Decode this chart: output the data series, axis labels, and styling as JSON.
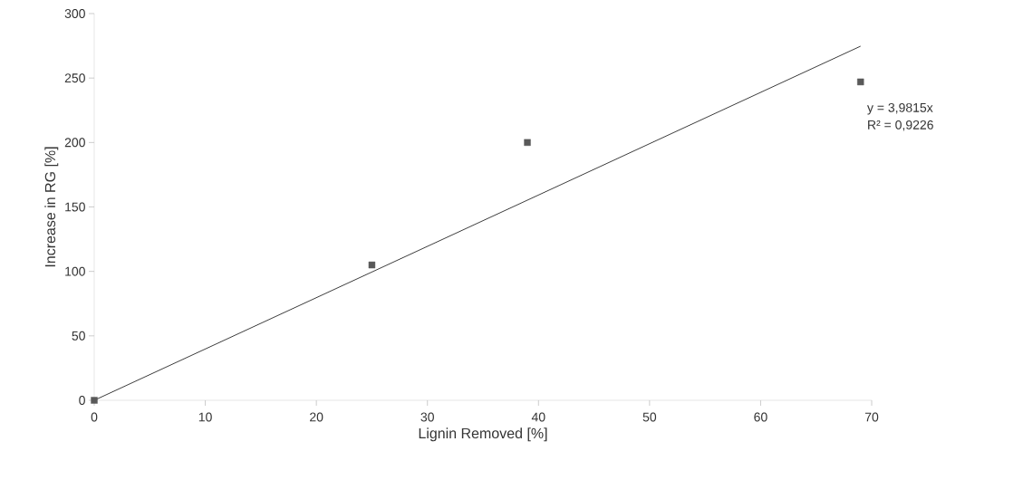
{
  "chart_data": {
    "type": "scatter",
    "xlabel": "Lignin Removed [%]",
    "ylabel": "Increase in RG [%]",
    "xlim": [
      0,
      70
    ],
    "ylim": [
      0,
      300
    ],
    "xticks": [
      0,
      10,
      20,
      30,
      40,
      50,
      60,
      70
    ],
    "yticks": [
      0,
      50,
      100,
      150,
      200,
      250,
      300
    ],
    "grid": false,
    "series": [
      {
        "color": "#595959",
        "marker": "square",
        "x": [
          0,
          25,
          39,
          69
        ],
        "values": [
          0,
          105,
          200,
          247
        ]
      },
      {
        "type": "line",
        "marker": "none",
        "color": "#262626",
        "x": [
          0,
          69
        ],
        "values": [
          0,
          274.7
        ]
      }
    ],
    "annotations": [
      "y = 3,9815x",
      "R² = 0,9226"
    ]
  }
}
